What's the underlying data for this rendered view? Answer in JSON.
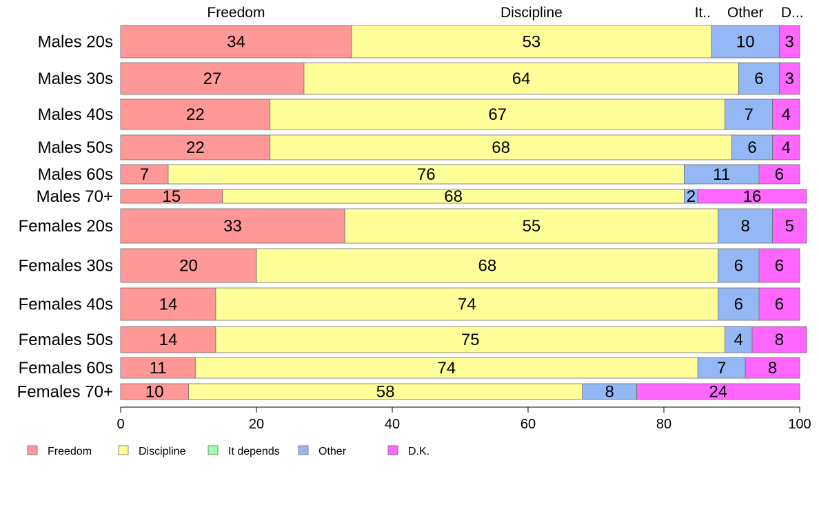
{
  "chart_data": {
    "type": "bar",
    "orientation": "horizontal",
    "stacked": true,
    "percent": true,
    "xlim": [
      0,
      100
    ],
    "x_ticks": [
      "0",
      "20",
      "40",
      "60",
      "80",
      "100"
    ],
    "top_labels": [
      "Freedom",
      "Discipline",
      "It..",
      "Other",
      "D..."
    ],
    "categories": [
      "Males 20s",
      "Males 30s",
      "Males 40s",
      "Males 50s",
      "Males 60s",
      "Males 70+",
      "Females 20s",
      "Females 30s",
      "Females 40s",
      "Females 50s",
      "Females 60s",
      "Females 70+"
    ],
    "series": [
      {
        "name": "Freedom",
        "color": "#ff9896",
        "values": [
          34,
          27,
          22,
          22,
          7,
          15,
          33,
          20,
          14,
          14,
          11,
          10
        ]
      },
      {
        "name": "Discipline",
        "color": "#ffff99",
        "values": [
          53,
          64,
          67,
          68,
          76,
          68,
          55,
          68,
          74,
          75,
          74,
          58
        ]
      },
      {
        "name": "It depends",
        "color": "#99ffaa",
        "values": [
          0,
          0,
          0,
          0,
          0,
          0,
          0,
          0,
          0,
          0,
          0,
          0
        ]
      },
      {
        "name": "Other",
        "color": "#94b8f5",
        "values": [
          10,
          6,
          7,
          6,
          11,
          2,
          8,
          6,
          6,
          4,
          7,
          8
        ]
      },
      {
        "name": "D.K.",
        "color": "#ff66ff",
        "values": [
          3,
          3,
          4,
          4,
          6,
          16,
          5,
          6,
          6,
          8,
          8,
          24
        ]
      }
    ],
    "legend": {
      "position": "bottom-left",
      "entries": [
        "Freedom",
        "Discipline",
        "It depends",
        "Other",
        "D.K."
      ]
    }
  }
}
